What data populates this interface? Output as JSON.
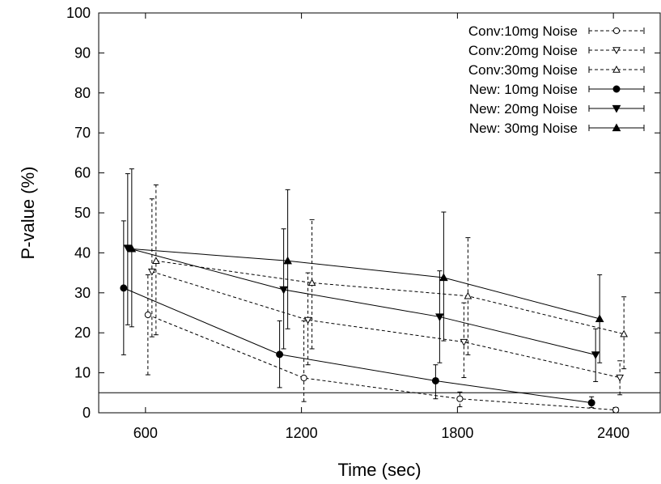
{
  "chart_data": {
    "type": "line",
    "xlabel": "Time (sec)",
    "ylabel": "P-value (%)",
    "xlim": [
      420,
      2580
    ],
    "ylim": [
      0,
      100
    ],
    "x_ticks": [
      600,
      1200,
      1800,
      2400
    ],
    "y_ticks": [
      0,
      10,
      20,
      30,
      40,
      50,
      60,
      70,
      80,
      90,
      100
    ],
    "reference_line_y": 5,
    "grid": false,
    "legend_position": "top-right",
    "series": [
      {
        "name": "Conv:10mg Noise",
        "style": "dashed",
        "marker": "open-circle",
        "x": [
          600,
          1200,
          1800,
          2400
        ],
        "y": [
          24.5,
          8.7,
          3.5,
          0.7
        ],
        "err_low": [
          9.5,
          2.8,
          1.5,
          0.2
        ],
        "err_high": [
          34.5,
          23,
          5.2,
          1.3
        ]
      },
      {
        "name": "Conv:20mg Noise",
        "style": "dashed",
        "marker": "open-triangle-down",
        "x": [
          600,
          1200,
          1800,
          2400
        ],
        "y": [
          35.3,
          23.2,
          17.7,
          8.8
        ],
        "err_low": [
          19,
          12,
          8.8,
          4.5
        ],
        "err_high": [
          53.5,
          35,
          27.5,
          13
        ]
      },
      {
        "name": "Conv:30mg Noise",
        "style": "dashed",
        "marker": "open-triangle-up",
        "x": [
          600,
          1200,
          1800,
          2400
        ],
        "y": [
          38,
          32.5,
          29.2,
          19.7
        ],
        "err_low": [
          19.5,
          16,
          14.5,
          11
        ],
        "err_high": [
          57,
          48.3,
          43.8,
          29
        ]
      },
      {
        "name": "New: 10mg Noise",
        "style": "solid",
        "marker": "filled-circle",
        "x": [
          600,
          1200,
          1800,
          2400
        ],
        "y": [
          31.2,
          14.6,
          8,
          2.5
        ],
        "err_low": [
          14.5,
          6.3,
          3.5,
          1.3
        ],
        "err_high": [
          48,
          23,
          12,
          4
        ]
      },
      {
        "name": "New: 20mg Noise",
        "style": "solid",
        "marker": "filled-triangle-down",
        "x": [
          600,
          1200,
          1800,
          2400
        ],
        "y": [
          41.2,
          30.8,
          24,
          14.5
        ],
        "err_low": [
          22,
          16,
          12.5,
          7.8
        ],
        "err_high": [
          59.8,
          46,
          35.5,
          21
        ]
      },
      {
        "name": "New: 30mg Noise",
        "style": "solid",
        "marker": "filled-triangle-up",
        "x": [
          600,
          1200,
          1800,
          2400
        ],
        "y": [
          41,
          38,
          33.8,
          23.5
        ],
        "err_low": [
          21.5,
          21,
          18,
          12.5
        ],
        "err_high": [
          61,
          55.8,
          50.2,
          34.5
        ]
      }
    ]
  }
}
